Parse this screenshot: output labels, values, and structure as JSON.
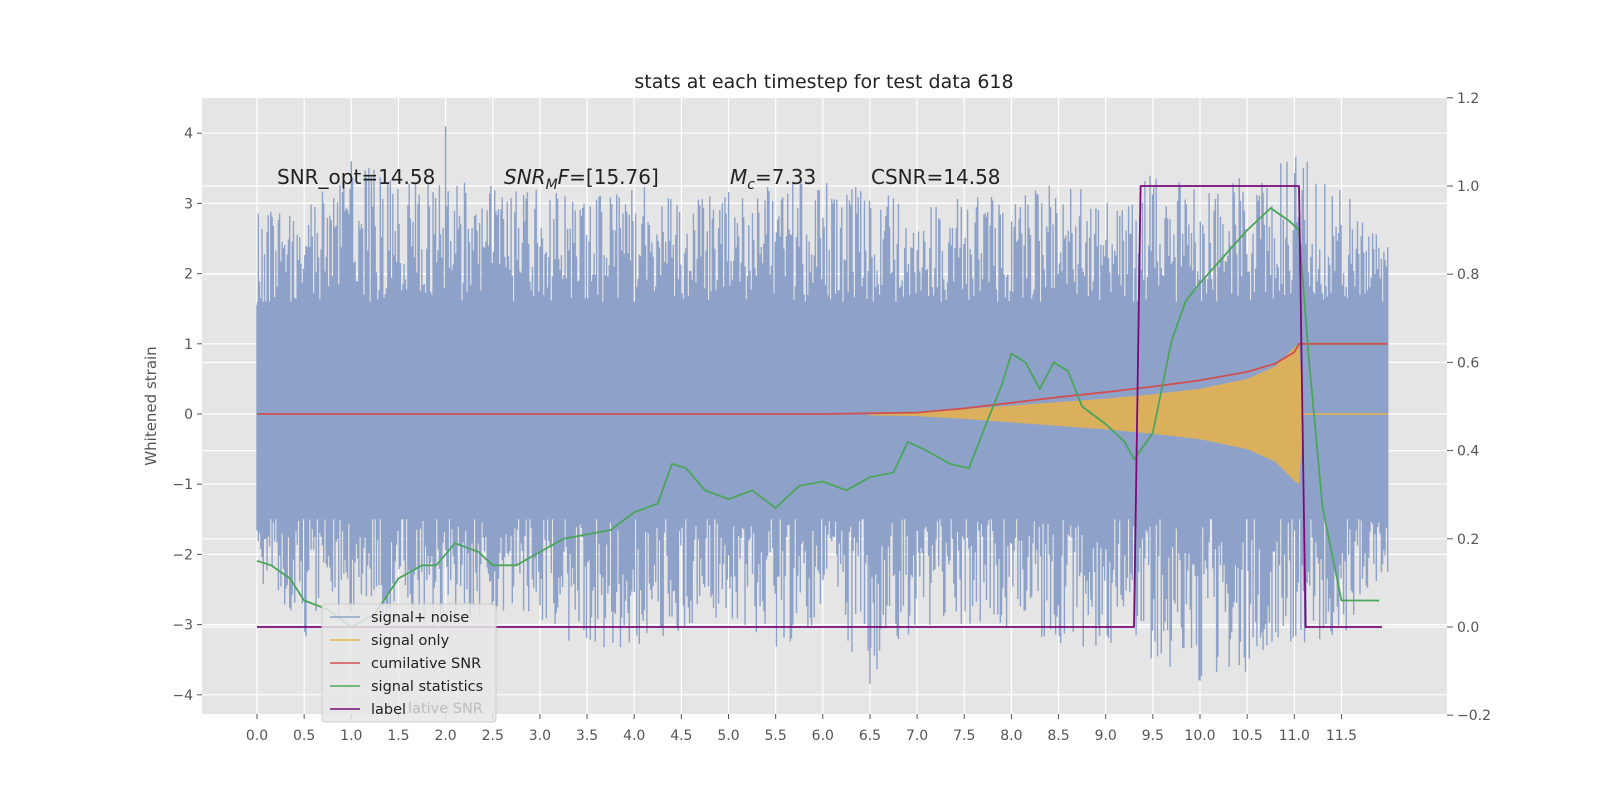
{
  "chart_data": {
    "type": "line",
    "title": "stats at each timestep for test data 618",
    "ylabel": "Whitened strain",
    "xlabel": "",
    "xlim": [
      0.0,
      12.0
    ],
    "ylim": [
      -4.25,
      4.5
    ],
    "y2lim": [
      -0.2,
      1.2
    ],
    "grid": true,
    "xticks": [
      0.0,
      0.5,
      1.0,
      1.5,
      2.0,
      2.5,
      3.0,
      3.5,
      4.0,
      4.5,
      5.0,
      5.5,
      6.0,
      6.5,
      7.0,
      7.5,
      8.0,
      8.5,
      9.0,
      9.5,
      10.0,
      10.5,
      11.0,
      11.5
    ],
    "xtick_labels": [
      "0.0",
      "0.5",
      "1.0",
      "1.5",
      "2.0",
      "2.5",
      "3.0",
      "3.5",
      "4.0",
      "4.5",
      "5.0",
      "5.5",
      "6.0",
      "6.5",
      "7.0",
      "7.5",
      "8.0",
      "8.5",
      "9.0",
      "9.5",
      "10.0",
      "10.5",
      "11.0",
      "11.5"
    ],
    "yticks": [
      4,
      3,
      2,
      1,
      0,
      -1,
      -2,
      -3,
      -4
    ],
    "ytick_labels": [
      "4",
      "3",
      "2",
      "1",
      "0",
      "−1",
      "−2",
      "−3",
      "−4"
    ],
    "y2ticks": [
      1.2,
      1.0,
      0.8,
      0.6,
      0.4,
      0.2,
      0.0,
      -0.2
    ],
    "y2tick_labels": [
      "1.2",
      "1.0",
      "0.8",
      "0.6",
      "0.4",
      "0.2",
      "0.0",
      "−0.2"
    ],
    "annotations": {
      "snr_opt": "SNR_opt=14.58",
      "snr_mf_italic": "SNR",
      "snr_mf_sub": "M",
      "snr_mf_italic2": "F",
      "snr_mf_value": "=[15.76]",
      "mc_italic": "M",
      "mc_sub": "c",
      "mc_value": "=7.33",
      "csnr": "CSNR=14.58"
    },
    "legend": {
      "placement": "lower-left",
      "entries": [
        "signal+ noise",
        "signal only",
        "cumilative SNR",
        "signal statistics",
        "label"
      ],
      "overlapped_entry_fragment": "lative SNR"
    },
    "colors": {
      "plot_bg": "#e5e5e5",
      "grid": "#ffffff",
      "signal_noise": "#8ea2c9",
      "signal_only": "#e8b34a",
      "cumulative_snr": "#d05050",
      "signal_statistics": "#4aa55a",
      "label": "#7a0a7a"
    },
    "series": [
      {
        "name": "signal+ noise",
        "axis": "left",
        "style": "noise-band",
        "x": [
          0.0,
          0.5,
          1.0,
          1.5,
          2.0,
          2.5,
          3.0,
          3.5,
          4.0,
          4.5,
          5.0,
          5.5,
          6.0,
          6.5,
          7.0,
          7.5,
          8.0,
          8.5,
          9.0,
          9.5,
          10.0,
          10.5,
          11.0,
          11.5,
          11.99
        ],
        "upper_envelope": [
          2.9,
          2.9,
          3.6,
          3.4,
          3.4,
          3.3,
          3.2,
          3.1,
          3.3,
          3.0,
          3.2,
          3.3,
          3.3,
          3.2,
          3.0,
          3.1,
          3.1,
          3.3,
          3.1,
          3.5,
          3.3,
          3.4,
          3.85,
          3.2,
          2.5
        ],
        "lower_envelope": [
          -2.3,
          -3.2,
          -2.9,
          -3.0,
          -3.1,
          -2.9,
          -3.0,
          -3.4,
          -3.3,
          -3.1,
          -2.9,
          -3.4,
          -3.0,
          -3.8,
          -3.0,
          -3.1,
          -3.2,
          -3.4,
          -3.3,
          -3.5,
          -3.8,
          -3.7,
          -3.3,
          -3.2,
          -2.4
        ],
        "extremes": [
          [
            2.0,
            4.1
          ],
          [
            1.0,
            3.6
          ],
          [
            6.5,
            -3.85
          ],
          [
            10.0,
            -3.8
          ]
        ]
      },
      {
        "name": "signal only",
        "axis": "left",
        "style": "chirp-envelope",
        "x": [
          6.5,
          7.0,
          7.5,
          8.0,
          8.5,
          9.0,
          9.5,
          10.0,
          10.5,
          10.8,
          11.0,
          11.05,
          11.1,
          11.99
        ],
        "amplitude": [
          0.02,
          0.03,
          0.07,
          0.12,
          0.17,
          0.22,
          0.28,
          0.36,
          0.5,
          0.68,
          0.95,
          1.0,
          0.0,
          0.0
        ]
      },
      {
        "name": "cumilative SNR",
        "axis": "left",
        "x": [
          0.0,
          6.0,
          6.5,
          7.0,
          7.5,
          8.0,
          8.5,
          9.0,
          9.5,
          10.0,
          10.5,
          10.8,
          11.0,
          11.05,
          11.99
        ],
        "y": [
          0.0,
          0.0,
          0.01,
          0.02,
          0.08,
          0.16,
          0.24,
          0.31,
          0.39,
          0.48,
          0.6,
          0.72,
          0.88,
          1.0,
          1.0
        ]
      },
      {
        "name": "signal statistics",
        "axis": "right",
        "x": [
          0.0,
          0.15,
          0.35,
          0.5,
          0.75,
          1.0,
          1.25,
          1.5,
          1.75,
          1.9,
          2.1,
          2.35,
          2.5,
          2.75,
          3.0,
          3.25,
          3.5,
          3.75,
          4.0,
          4.25,
          4.4,
          4.55,
          4.75,
          5.0,
          5.25,
          5.5,
          5.75,
          6.0,
          6.25,
          6.5,
          6.75,
          6.9,
          7.1,
          7.35,
          7.55,
          7.75,
          7.9,
          8.0,
          8.15,
          8.3,
          8.45,
          8.6,
          8.75,
          9.0,
          9.2,
          9.3,
          9.5,
          9.7,
          9.85,
          10.0,
          10.25,
          10.5,
          10.75,
          10.95,
          11.05,
          11.15,
          11.3,
          11.5,
          11.75,
          11.9
        ],
        "y": [
          0.15,
          0.14,
          0.11,
          0.06,
          0.04,
          0.0,
          0.03,
          0.11,
          0.14,
          0.14,
          0.19,
          0.17,
          0.14,
          0.14,
          0.17,
          0.2,
          0.21,
          0.22,
          0.26,
          0.28,
          0.37,
          0.36,
          0.31,
          0.29,
          0.31,
          0.27,
          0.32,
          0.33,
          0.31,
          0.34,
          0.35,
          0.42,
          0.4,
          0.37,
          0.36,
          0.47,
          0.55,
          0.62,
          0.6,
          0.54,
          0.6,
          0.58,
          0.5,
          0.46,
          0.42,
          0.38,
          0.44,
          0.65,
          0.74,
          0.78,
          0.84,
          0.9,
          0.95,
          0.92,
          0.9,
          0.62,
          0.27,
          0.06,
          0.06,
          0.06
        ]
      },
      {
        "name": "label",
        "axis": "right",
        "x": [
          0.0,
          9.3,
          9.37,
          11.05,
          11.12,
          11.93
        ],
        "y": [
          0.0,
          0.0,
          1.0,
          1.0,
          0.0,
          0.0
        ]
      }
    ]
  }
}
